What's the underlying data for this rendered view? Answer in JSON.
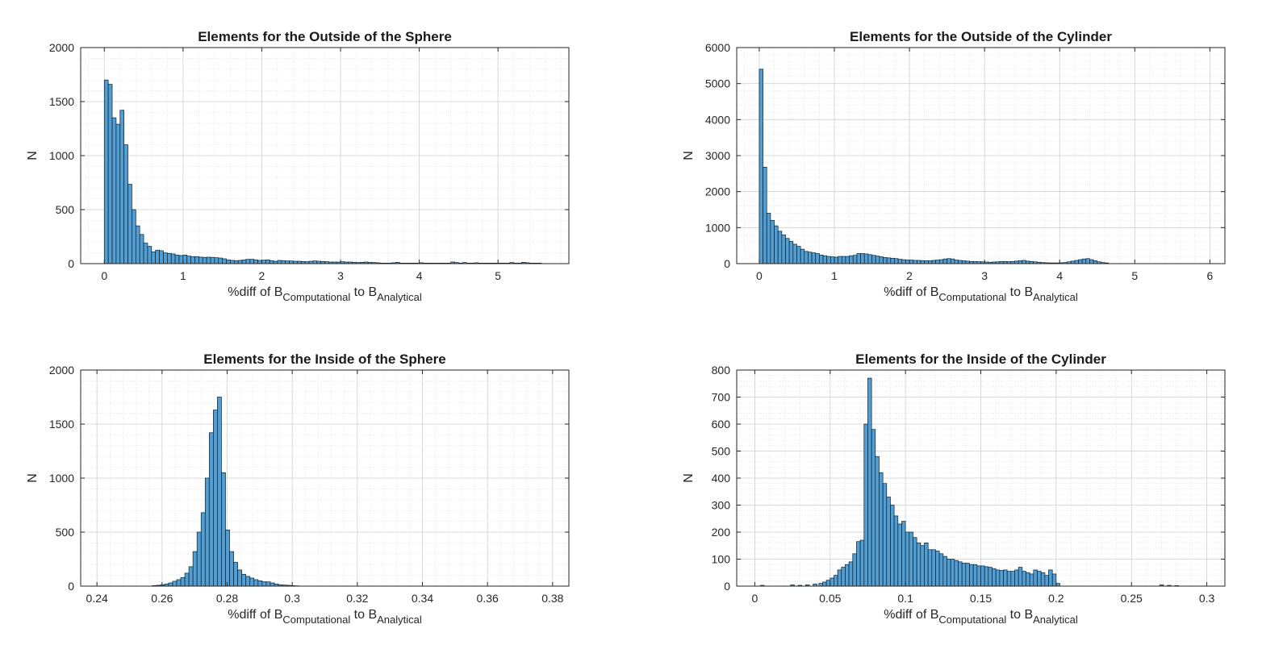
{
  "figure": {
    "accent_color": "#4f9fd6",
    "bar_edge_color": "#1a1a1a",
    "grid": "on (major + minor, dotted)"
  },
  "chart_data": [
    {
      "type": "bar",
      "title": "Elements for the Outside of the Sphere",
      "ylabel": "N",
      "xlabel": {
        "prefix": "%diff of B",
        "sub1": "Computational",
        "middle": " to B",
        "sub2": "Analytical"
      },
      "xlim": [
        -0.3,
        5.9
      ],
      "ylim": [
        0,
        2000
      ],
      "xticks": [
        0,
        1,
        2,
        3,
        4,
        5
      ],
      "yticks": [
        0,
        500,
        1000,
        1500,
        2000
      ],
      "xtick_labels": [
        "0",
        "1",
        "2",
        "3",
        "4",
        "5"
      ],
      "ytick_labels": [
        "0",
        "500",
        "1000",
        "1500",
        "2000"
      ],
      "bin_start": 0,
      "bin_width": 0.05,
      "counts": [
        1700,
        1660,
        1350,
        1290,
        1420,
        1100,
        735,
        500,
        350,
        270,
        190,
        160,
        110,
        125,
        120,
        100,
        95,
        90,
        80,
        75,
        80,
        70,
        65,
        65,
        60,
        58,
        60,
        58,
        55,
        52,
        45,
        35,
        30,
        28,
        30,
        35,
        40,
        40,
        35,
        30,
        32,
        35,
        28,
        22,
        30,
        28,
        25,
        25,
        22,
        22,
        20,
        18,
        22,
        25,
        22,
        20,
        18,
        15,
        15,
        15,
        18,
        15,
        15,
        12,
        10,
        12,
        15,
        12,
        10,
        8,
        5,
        5,
        5,
        8,
        12,
        5,
        5,
        5,
        5,
        5,
        8,
        5,
        5,
        5,
        5,
        5,
        5,
        5,
        15,
        10,
        5,
        10,
        5,
        5,
        8,
        5,
        5,
        5,
        5,
        5,
        5,
        5,
        5,
        10,
        5,
        5,
        12,
        8,
        5,
        5,
        5
      ]
    },
    {
      "type": "bar",
      "title": "Elements for the Outside of the Cylinder",
      "ylabel": "N",
      "xlabel": {
        "prefix": "%diff of B",
        "sub1": "Computational",
        "middle": " to B",
        "sub2": "Analytical"
      },
      "xlim": [
        -0.3,
        6.2
      ],
      "ylim": [
        0,
        6000
      ],
      "xticks": [
        0,
        1,
        2,
        3,
        4,
        5,
        6
      ],
      "yticks": [
        0,
        1000,
        2000,
        3000,
        4000,
        5000,
        6000
      ],
      "xtick_labels": [
        "0",
        "1",
        "2",
        "3",
        "4",
        "5",
        "6"
      ],
      "ytick_labels": [
        "0",
        "1000",
        "2000",
        "3000",
        "4000",
        "5000",
        "6000"
      ],
      "bin_start": 0,
      "bin_width": 0.05,
      "counts": [
        5400,
        2680,
        1400,
        1200,
        1050,
        900,
        800,
        700,
        620,
        540,
        480,
        400,
        340,
        320,
        300,
        280,
        240,
        220,
        200,
        190,
        180,
        200,
        200,
        200,
        220,
        230,
        280,
        280,
        270,
        250,
        230,
        210,
        190,
        170,
        160,
        150,
        140,
        120,
        110,
        100,
        100,
        90,
        90,
        85,
        80,
        80,
        90,
        100,
        110,
        130,
        140,
        130,
        100,
        90,
        80,
        70,
        60,
        60,
        55,
        50,
        45,
        40,
        45,
        50,
        60,
        60,
        55,
        60,
        70,
        80,
        90,
        70,
        60,
        50,
        40,
        30,
        25,
        20,
        20,
        20,
        25,
        30,
        50,
        70,
        90,
        110,
        130,
        140,
        110,
        80,
        50,
        30,
        20
      ]
    },
    {
      "type": "bar",
      "title": "Elements for the Inside of the Sphere",
      "ylabel": "N",
      "xlabel": {
        "prefix": "%diff of B",
        "sub1": "Computational",
        "middle": " to B",
        "sub2": "Analytical"
      },
      "xlim": [
        0.235,
        0.385
      ],
      "ylim": [
        0,
        2000
      ],
      "xticks": [
        0.24,
        0.26,
        0.28,
        0.3,
        0.32,
        0.34,
        0.36,
        0.38
      ],
      "yticks": [
        0,
        500,
        1000,
        1500,
        2000
      ],
      "xtick_labels": [
        "0.24",
        "0.26",
        "0.28",
        "0.3",
        "0.32",
        "0.34",
        "0.36",
        "0.38"
      ],
      "ytick_labels": [
        "0",
        "500",
        "1000",
        "1500",
        "2000"
      ],
      "bin_start": 0.257,
      "bin_width": 0.00125,
      "counts": [
        5,
        8,
        12,
        20,
        30,
        45,
        60,
        80,
        120,
        180,
        320,
        500,
        680,
        1000,
        1420,
        1630,
        1750,
        1050,
        520,
        320,
        220,
        150,
        110,
        90,
        75,
        60,
        50,
        40,
        40,
        30,
        20,
        12,
        10,
        8,
        5,
        3
      ]
    },
    {
      "type": "bar",
      "title": "Elements for the Inside of the Cylinder",
      "ylabel": "N",
      "xlabel": {
        "prefix": "%diff of B",
        "sub1": "Computational",
        "middle": " to B",
        "sub2": "Analytical"
      },
      "xlim": [
        -0.012,
        0.312
      ],
      "ylim": [
        0,
        800
      ],
      "xticks": [
        0,
        0.05,
        0.1,
        0.15,
        0.2,
        0.25,
        0.3
      ],
      "yticks": [
        0,
        100,
        200,
        300,
        400,
        500,
        600,
        700,
        800
      ],
      "xtick_labels": [
        "0",
        "0.05",
        "0.1",
        "0.15",
        "0.2",
        "0.25",
        "0.3"
      ],
      "ytick_labels": [
        "0",
        "100",
        "200",
        "300",
        "400",
        "500",
        "600",
        "700",
        "800"
      ],
      "bin_start": 0.0425,
      "bin_width": 0.0025,
      "counts": [
        10,
        15,
        22,
        30,
        40,
        60,
        70,
        80,
        90,
        120,
        165,
        170,
        600,
        770,
        580,
        480,
        420,
        380,
        330,
        300,
        260,
        230,
        240,
        200,
        200,
        180,
        160,
        150,
        160,
        135,
        135,
        130,
        120,
        110,
        100,
        100,
        95,
        90,
        85,
        85,
        80,
        80,
        75,
        75,
        72,
        70,
        65,
        60,
        58,
        60,
        55,
        55,
        60,
        70,
        55,
        50,
        45,
        60,
        55,
        50,
        40,
        60,
        45,
        10
      ],
      "extra_counts_x": [
        0.005,
        0.025,
        0.03,
        0.035,
        0.04,
        0.27,
        0.275,
        0.28
      ],
      "extra_counts": [
        3,
        5,
        3,
        5,
        8,
        5,
        3,
        2
      ]
    }
  ]
}
